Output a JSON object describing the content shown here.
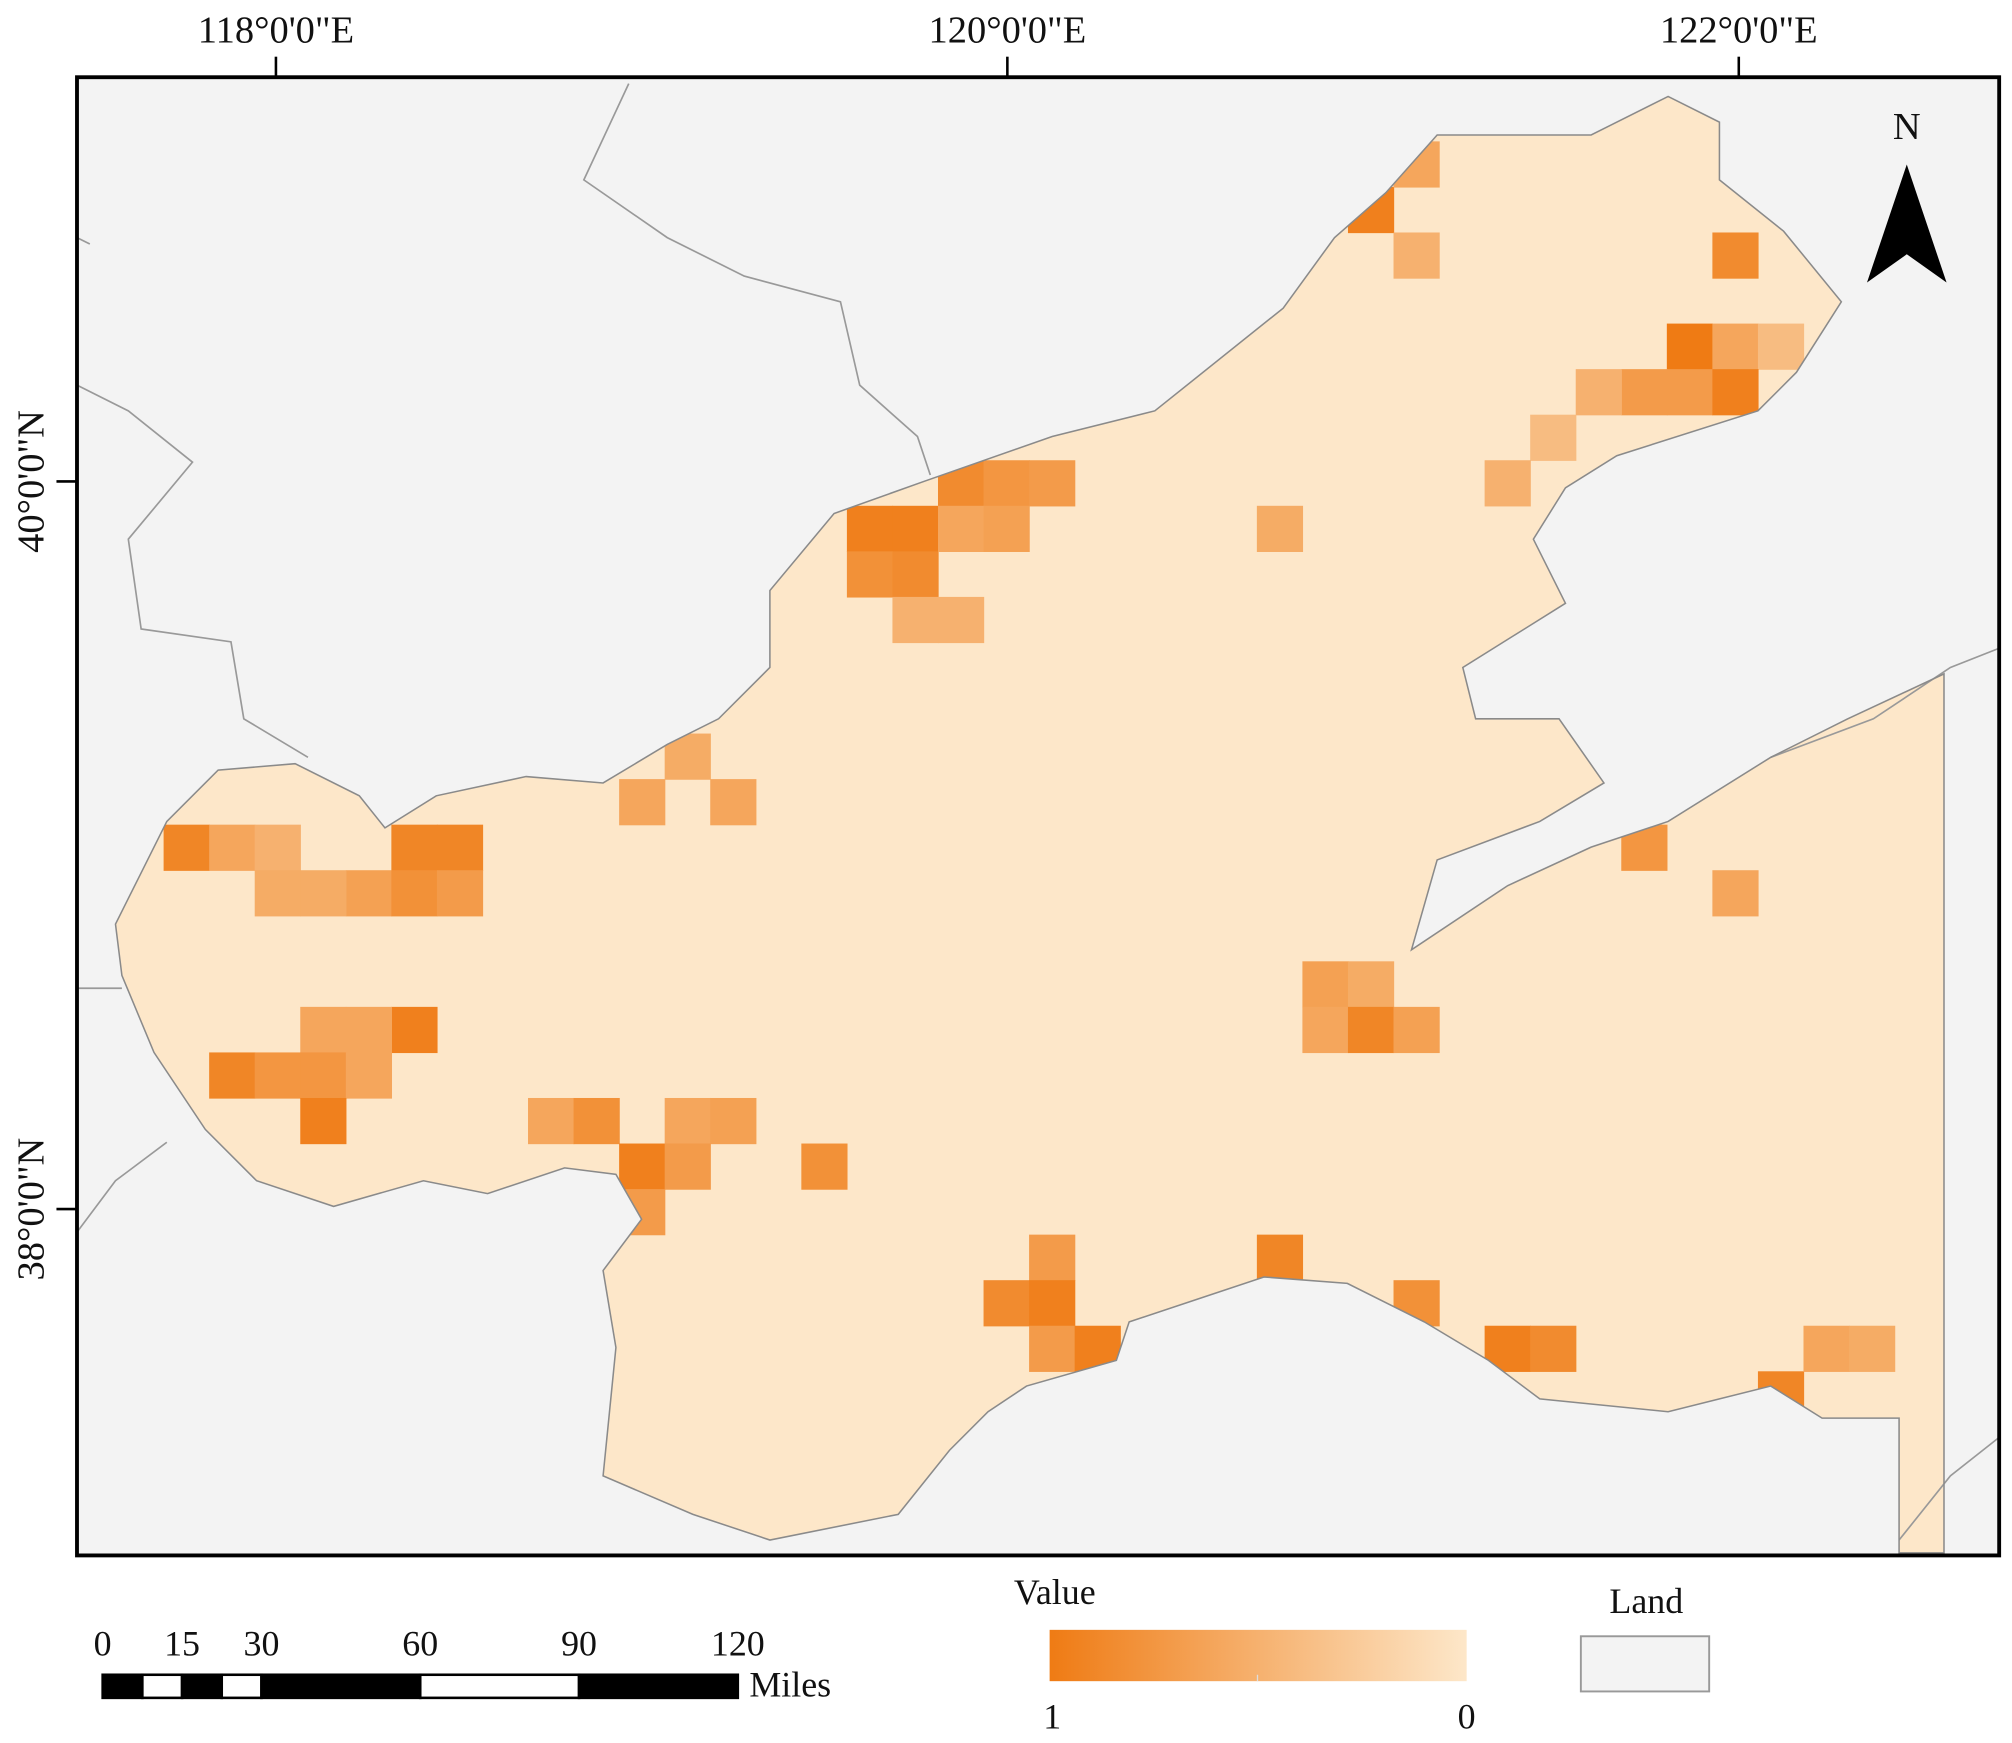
{
  "map": {
    "lon_ticks": [
      {
        "value": 118,
        "label": "118°0'0\"E"
      },
      {
        "value": 120,
        "label": "120°0'0\"E"
      },
      {
        "value": 122,
        "label": "122°0'0\"E"
      }
    ],
    "lat_ticks": [
      {
        "value": 40,
        "label": "40°0'0\"N"
      },
      {
        "value": 38,
        "label": "38°0'0\"N"
      }
    ],
    "xlim": [
      117.456,
      122.712
    ],
    "ylim": [
      37.048,
      41.111
    ],
    "north_label": "N",
    "sea_color": "#fde7c9",
    "land_color": "#f3f3f3",
    "color_low": "#fde7c9",
    "color_high": "#ef7b14",
    "legend": {
      "title": "Value",
      "high_label": "1",
      "low_label": "0",
      "land_label": "Land"
    },
    "scale_bar": {
      "ticks": [
        0,
        15,
        30,
        60,
        90,
        120
      ],
      "unit": "Miles"
    },
    "cells": [
      {
        "col": 27,
        "row": 1,
        "value": 0.95
      },
      {
        "col": 28,
        "row": 0,
        "value": 0.6
      },
      {
        "col": 28,
        "row": 2,
        "value": 0.5
      },
      {
        "col": 35,
        "row": 2,
        "value": 0.85
      },
      {
        "col": 34,
        "row": 4,
        "value": 1.0
      },
      {
        "col": 35,
        "row": 4,
        "value": 0.6
      },
      {
        "col": 36,
        "row": 4,
        "value": 0.4
      },
      {
        "col": 33,
        "row": 5,
        "value": 0.7
      },
      {
        "col": 34,
        "row": 5,
        "value": 0.7
      },
      {
        "col": 35,
        "row": 5,
        "value": 0.95
      },
      {
        "col": 32,
        "row": 5,
        "value": 0.5
      },
      {
        "col": 31,
        "row": 6,
        "value": 0.4
      },
      {
        "col": 30,
        "row": 7,
        "value": 0.5
      },
      {
        "col": 16,
        "row": 8,
        "value": 0.95
      },
      {
        "col": 17,
        "row": 8,
        "value": 0.95
      },
      {
        "col": 16,
        "row": 9,
        "value": 0.8
      },
      {
        "col": 17,
        "row": 9,
        "value": 0.85
      },
      {
        "col": 18,
        "row": 7,
        "value": 0.85
      },
      {
        "col": 19,
        "row": 7,
        "value": 0.75
      },
      {
        "col": 20,
        "row": 7,
        "value": 0.7
      },
      {
        "col": 18,
        "row": 8,
        "value": 0.6
      },
      {
        "col": 19,
        "row": 8,
        "value": 0.65
      },
      {
        "col": 25,
        "row": 8,
        "value": 0.55
      },
      {
        "col": 17,
        "row": 10,
        "value": 0.5
      },
      {
        "col": 18,
        "row": 10,
        "value": 0.5
      },
      {
        "col": 11,
        "row": 14,
        "value": 0.6
      },
      {
        "col": 12,
        "row": 13,
        "value": 0.55
      },
      {
        "col": 13,
        "row": 14,
        "value": 0.6
      },
      {
        "col": 1,
        "row": 15,
        "value": 0.9
      },
      {
        "col": 2,
        "row": 15,
        "value": 0.6
      },
      {
        "col": 3,
        "row": 15,
        "value": 0.5
      },
      {
        "col": 6,
        "row": 15,
        "value": 0.9
      },
      {
        "col": 7,
        "row": 15,
        "value": 0.9
      },
      {
        "col": 5,
        "row": 16,
        "value": 0.65
      },
      {
        "col": 6,
        "row": 16,
        "value": 0.8
      },
      {
        "col": 7,
        "row": 16,
        "value": 0.7
      },
      {
        "col": 3,
        "row": 16,
        "value": 0.55
      },
      {
        "col": 4,
        "row": 16,
        "value": 0.55
      },
      {
        "col": 6,
        "row": 19,
        "value": 0.95
      },
      {
        "col": 4,
        "row": 19,
        "value": 0.6
      },
      {
        "col": 5,
        "row": 19,
        "value": 0.6
      },
      {
        "col": 2,
        "row": 20,
        "value": 0.9
      },
      {
        "col": 3,
        "row": 20,
        "value": 0.75
      },
      {
        "col": 4,
        "row": 20,
        "value": 0.75
      },
      {
        "col": 5,
        "row": 20,
        "value": 0.6
      },
      {
        "col": 4,
        "row": 21,
        "value": 0.95
      },
      {
        "col": 9,
        "row": 21,
        "value": 0.6
      },
      {
        "col": 10,
        "row": 21,
        "value": 0.8
      },
      {
        "col": 12,
        "row": 21,
        "value": 0.6
      },
      {
        "col": 13,
        "row": 21,
        "value": 0.65
      },
      {
        "col": 11,
        "row": 22,
        "value": 0.95
      },
      {
        "col": 12,
        "row": 22,
        "value": 0.7
      },
      {
        "col": 15,
        "row": 22,
        "value": 0.8
      },
      {
        "col": 11,
        "row": 23,
        "value": 0.7
      },
      {
        "col": 26,
        "row": 18,
        "value": 0.65
      },
      {
        "col": 27,
        "row": 18,
        "value": 0.55
      },
      {
        "col": 26,
        "row": 19,
        "value": 0.6
      },
      {
        "col": 27,
        "row": 19,
        "value": 0.9
      },
      {
        "col": 28,
        "row": 19,
        "value": 0.65
      },
      {
        "col": 33,
        "row": 15,
        "value": 0.75
      },
      {
        "col": 35,
        "row": 16,
        "value": 0.6
      },
      {
        "col": 25,
        "row": 24,
        "value": 0.9
      },
      {
        "col": 20,
        "row": 24,
        "value": 0.7
      },
      {
        "col": 19,
        "row": 25,
        "value": 0.85
      },
      {
        "col": 20,
        "row": 25,
        "value": 0.95
      },
      {
        "col": 20,
        "row": 26,
        "value": 0.7
      },
      {
        "col": 21,
        "row": 26,
        "value": 0.95
      },
      {
        "col": 28,
        "row": 25,
        "value": 0.8
      },
      {
        "col": 30,
        "row": 26,
        "value": 0.95
      },
      {
        "col": 31,
        "row": 26,
        "value": 0.85
      },
      {
        "col": 36,
        "row": 27,
        "value": 0.9
      },
      {
        "col": 37,
        "row": 26,
        "value": 0.6
      },
      {
        "col": 38,
        "row": 26,
        "value": 0.55
      }
    ]
  }
}
